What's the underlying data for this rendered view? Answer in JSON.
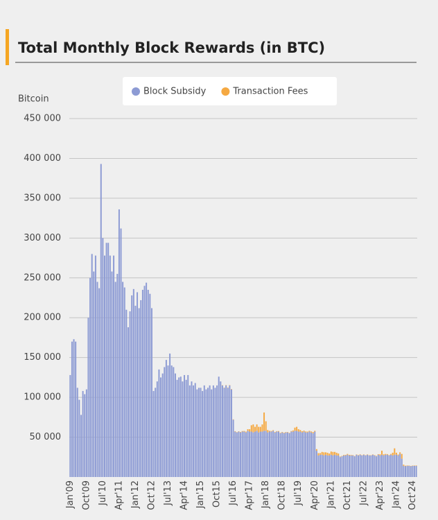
{
  "chart_data": {
    "type": "stacked_bar",
    "title": "Total Monthly Block Rewards (in BTC)",
    "y_label": "Bitcoin",
    "legend": "top",
    "categories": [
      "Jan'09",
      null,
      null,
      null,
      null,
      null,
      null,
      null,
      null,
      "Oct'09",
      null,
      null,
      null,
      null,
      null,
      null,
      null,
      null,
      "Jul'10",
      null,
      null,
      null,
      null,
      null,
      null,
      null,
      null,
      "Apr'11",
      null,
      null,
      null,
      null,
      null,
      null,
      null,
      null,
      "Jan'12",
      null,
      null,
      null,
      null,
      null,
      null,
      null,
      null,
      "Oct'12",
      null,
      null,
      null,
      null,
      null,
      null,
      null,
      null,
      "Jul'13",
      null,
      null,
      null,
      null,
      null,
      null,
      null,
      null,
      "Apr'14",
      null,
      null,
      null,
      null,
      null,
      null,
      null,
      null,
      "Jan'15",
      null,
      null,
      null,
      null,
      null,
      null,
      null,
      null,
      "Oct15",
      null,
      null,
      null,
      null,
      null,
      null,
      null,
      null,
      "Jul'16",
      null,
      null,
      null,
      null,
      null,
      null,
      null,
      null,
      "Apr'17",
      null,
      null,
      null,
      null,
      null,
      null,
      null,
      null,
      "Jan'18",
      null,
      null,
      null,
      null,
      null,
      null,
      null,
      null,
      "Oct'18",
      null,
      null,
      null,
      null,
      null,
      null,
      null,
      null,
      "Jul'19",
      null,
      null,
      null,
      null,
      null,
      null,
      null,
      null,
      "Apr'20",
      null,
      null,
      null,
      null,
      null,
      null,
      null,
      null,
      "Jan'21",
      null,
      null,
      null,
      null,
      null,
      null,
      null,
      null,
      "Oct'21",
      null,
      null,
      null,
      null,
      null,
      null,
      null,
      null,
      "Jul'22",
      null,
      null,
      null,
      null,
      null,
      null,
      null,
      null,
      "Apr'23",
      null,
      null,
      null,
      null,
      null,
      null,
      null,
      null,
      "Jan'24",
      null,
      null,
      null,
      null,
      null,
      null,
      null,
      null,
      "Oct'24",
      null,
      null
    ],
    "series": [
      {
        "name": "Block Subsidy",
        "color": "#8d9bd4",
        "values": [
          128000,
          170000,
          173000,
          170000,
          112000,
          97000,
          78000,
          108000,
          104000,
          110000,
          200000,
          250000,
          280000,
          258000,
          278000,
          245000,
          237000,
          393000,
          300000,
          278000,
          294000,
          294000,
          278000,
          258000,
          278000,
          245000,
          255000,
          336000,
          312000,
          245000,
          238000,
          210000,
          188000,
          208000,
          228000,
          236000,
          215000,
          232000,
          212000,
          222000,
          235000,
          240000,
          244000,
          235000,
          230000,
          212000,
          108000,
          112000,
          120000,
          135000,
          125000,
          130000,
          138000,
          147000,
          140000,
          155000,
          140000,
          138000,
          130000,
          122000,
          125000,
          126000,
          120000,
          128000,
          122000,
          128000,
          115000,
          120000,
          115000,
          118000,
          110000,
          112000,
          112000,
          108000,
          115000,
          110000,
          112000,
          115000,
          110000,
          115000,
          112000,
          115000,
          126000,
          120000,
          115000,
          112000,
          115000,
          112000,
          115000,
          110000,
          72000,
          57000,
          56000,
          57000,
          56000,
          57000,
          57000,
          56000,
          58000,
          57000,
          57000,
          56000,
          57000,
          58000,
          56000,
          57000,
          57000,
          58000,
          58000,
          56000,
          57000,
          57000,
          58000,
          56000,
          57000,
          57000,
          55000,
          56000,
          55000,
          56000,
          56000,
          55000,
          57000,
          57000,
          58000,
          58000,
          57000,
          57000,
          56000,
          57000,
          56000,
          56000,
          57000,
          56000,
          55000,
          57000,
          33000,
          27000,
          28000,
          28000,
          27000,
          28000,
          27000,
          27000,
          28000,
          27000,
          28000,
          27000,
          27000,
          25000,
          26000,
          27000,
          27000,
          28000,
          27000,
          27000,
          27000,
          26000,
          28000,
          27000,
          28000,
          27000,
          28000,
          27000,
          28000,
          27000,
          27000,
          28000,
          27000,
          26000,
          28000,
          27000,
          28000,
          27000,
          28000,
          28000,
          27000,
          28000,
          27000,
          28000,
          28000,
          27000,
          29000,
          23000,
          14000,
          13500,
          14000,
          14000,
          13500,
          14000,
          14000,
          14000
        ]
      },
      {
        "name": "Transaction Fees",
        "color": "#f5a942",
        "values": [
          0,
          0,
          0,
          0,
          0,
          0,
          0,
          0,
          0,
          0,
          0,
          0,
          0,
          0,
          0,
          0,
          0,
          0,
          0,
          0,
          0,
          0,
          0,
          0,
          0,
          0,
          0,
          0,
          0,
          0,
          0,
          0,
          0,
          0,
          0,
          0,
          0,
          0,
          0,
          0,
          0,
          0,
          0,
          0,
          0,
          0,
          0,
          0,
          0,
          0,
          0,
          0,
          0,
          0,
          0,
          0,
          0,
          0,
          0,
          0,
          0,
          0,
          0,
          0,
          0,
          0,
          0,
          0,
          0,
          0,
          0,
          0,
          0,
          0,
          0,
          0,
          0,
          0,
          0,
          0,
          0,
          0,
          0,
          0,
          300,
          300,
          400,
          400,
          400,
          400,
          400,
          500,
          400,
          400,
          600,
          700,
          800,
          1000,
          2000,
          3000,
          8000,
          10000,
          6000,
          8000,
          7000,
          6000,
          9000,
          23000,
          12000,
          3000,
          1000,
          800,
          800,
          600,
          600,
          700,
          600,
          600,
          700,
          500,
          500,
          500,
          700,
          1500,
          4000,
          5000,
          3000,
          2000,
          1500,
          1200,
          1200,
          1000,
          1000,
          1200,
          1500,
          1000,
          2000,
          3000,
          2000,
          3500,
          4000,
          3000,
          3500,
          2500,
          4000,
          4500,
          3500,
          3500,
          2500,
          700,
          500,
          700,
          800,
          1000,
          800,
          700,
          500,
          400,
          400,
          500,
          500,
          400,
          400,
          400,
          400,
          400,
          400,
          400,
          500,
          500,
          700,
          1500,
          5000,
          1500,
          1000,
          800,
          600,
          1000,
          3500,
          8000,
          2500,
          1200,
          2000,
          6000,
          1500,
          700,
          500,
          400,
          400,
          400,
          400,
          500
        ]
      }
    ],
    "ylim": [
      0,
      450000
    ],
    "yticks": [
      {
        "value": 50000,
        "label": "50 000"
      },
      {
        "value": 100000,
        "label": "100 000"
      },
      {
        "value": 150000,
        "label": "150 000"
      },
      {
        "value": 200000,
        "label": "200 000"
      },
      {
        "value": 250000,
        "label": "250 000"
      },
      {
        "value": 300000,
        "label": "300 000"
      },
      {
        "value": 350000,
        "label": "350 000"
      },
      {
        "value": 400000,
        "label": "400 000"
      },
      {
        "value": 450000,
        "label": "450 000"
      }
    ],
    "grid": true
  }
}
